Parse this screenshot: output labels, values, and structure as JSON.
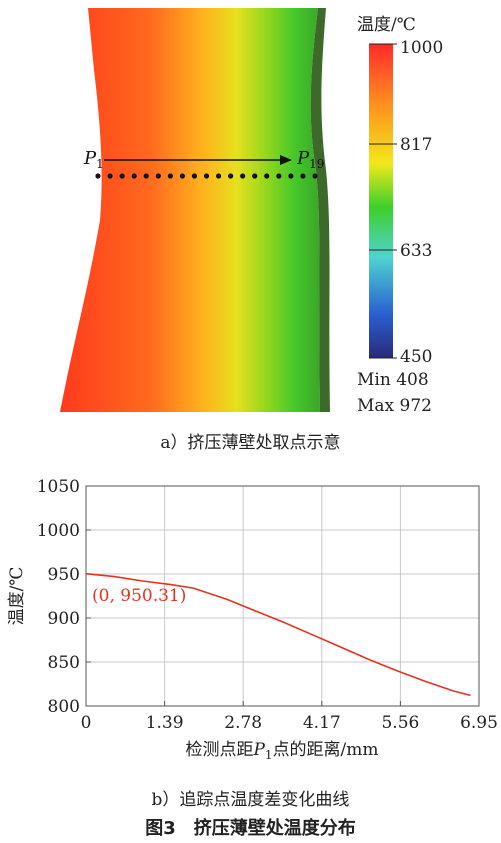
{
  "figure_a": {
    "legend_title": "温度/℃",
    "scale_ticks": [
      "1000",
      "817",
      "633",
      "450"
    ],
    "min_label": "Min 408",
    "max_label": "Max 972",
    "point_start_letter": "P",
    "point_start_sub": "1",
    "point_end_letter": "P",
    "point_end_sub": "19",
    "gradient_colors": [
      "#ff2a2a",
      "#ff8a1e",
      "#f2e81a",
      "#3ecf2a",
      "#4fd3cf",
      "#2a5fd0",
      "#2a2a7a"
    ],
    "caption": "a）挤压薄壁处取点示意"
  },
  "chart_data": {
    "type": "line",
    "x": [
      0,
      0.5,
      1.0,
      1.5,
      1.9,
      2.5,
      3.0,
      3.5,
      4.0,
      4.5,
      5.0,
      5.5,
      6.0,
      6.5,
      6.8
    ],
    "series": [
      {
        "values": [
          950.31,
          947,
          942,
          938,
          934,
          921,
          908,
          895,
          881,
          867,
          853,
          840,
          828,
          817,
          812
        ]
      }
    ],
    "xticks": [
      "0",
      "1.39",
      "2.78",
      "4.17",
      "5.56",
      "6.95"
    ],
    "yticks": [
      "800",
      "850",
      "900",
      "950",
      "1000",
      "1050"
    ],
    "xlim": [
      0,
      6.95
    ],
    "ylim": [
      800,
      1050
    ],
    "ylabel": "温度/℃",
    "xlabel_prefix": "检测点距",
    "xlabel_p": "P",
    "xlabel_sub": "1",
    "xlabel_suffix": "点的距离/mm",
    "annotation": "(0, 950.31)",
    "grid": true,
    "line_color": "#e8311f",
    "caption": "b）追踪点温度差变化曲线"
  },
  "figure_caption": "图3　挤压薄壁处温度分布"
}
